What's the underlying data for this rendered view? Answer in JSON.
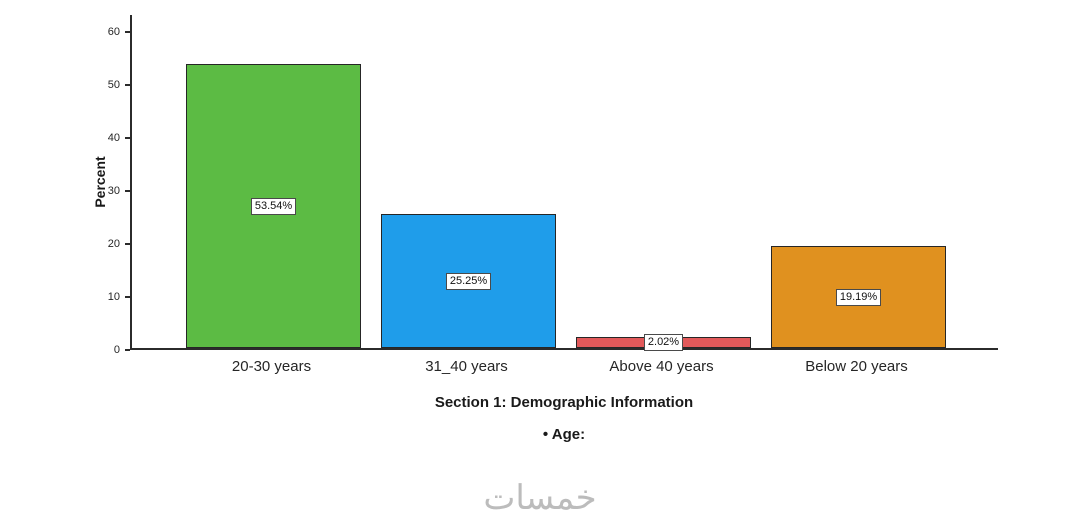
{
  "chart_data": {
    "type": "bar",
    "title": "Section 1: Demographic Information",
    "subtitle": "• Age:",
    "ylabel": "Percent",
    "categories": [
      "20-30 years",
      "31_40 years",
      "Above 40 years",
      "Below 20 years"
    ],
    "values": [
      53.54,
      25.25,
      2.02,
      19.19
    ],
    "value_labels": [
      "53.54%",
      "25.25%",
      "2.02%",
      "19.19%"
    ],
    "bar_colors": [
      "#5cbb44",
      "#1f9dea",
      "#e2595a",
      "#e0911f"
    ],
    "bar_border_color": "#262626",
    "yticks": [
      0,
      10,
      20,
      30,
      40,
      50,
      60
    ],
    "ylim": [
      0,
      60
    ],
    "grid": false,
    "legend": null
  },
  "watermark": {
    "text": "خمسات"
  }
}
